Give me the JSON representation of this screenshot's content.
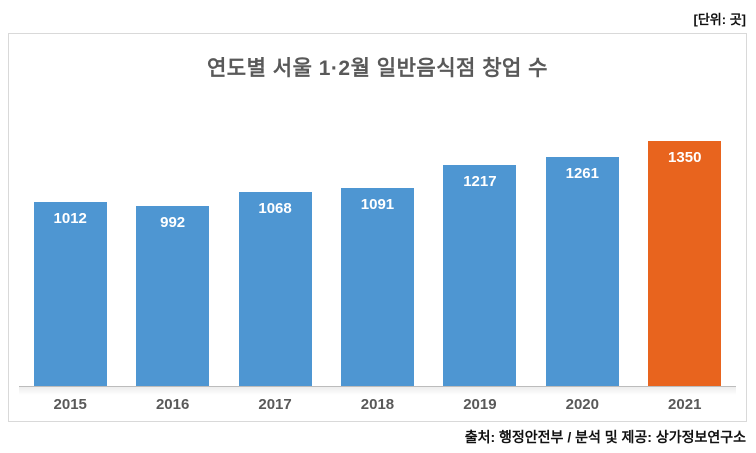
{
  "chart_data": {
    "type": "bar",
    "title": "연도별 서울 1·2월 일반음식점 창업 수",
    "unit_label": "[단위: 곳]",
    "source": "출처: 행정안전부 / 분석 및 제공: 상가정보연구소",
    "categories": [
      "2015",
      "2016",
      "2017",
      "2018",
      "2019",
      "2020",
      "2021"
    ],
    "values": [
      1012,
      992,
      1068,
      1091,
      1217,
      1261,
      1350
    ],
    "highlight_index": 6,
    "grid": false,
    "legend": "none",
    "ylim": [
      0,
      1400
    ],
    "colors": {
      "bar": "#4E96D2",
      "highlight": "#E8641E",
      "value_label": "#ffffff",
      "axis_text": "#595959",
      "title_text": "#595959",
      "border": "#d9d9d9"
    }
  }
}
